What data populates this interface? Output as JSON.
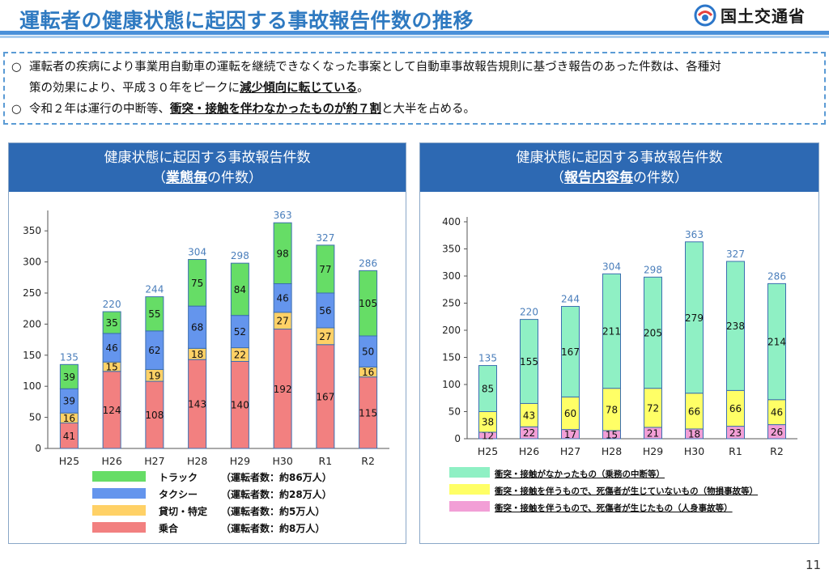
{
  "header": {
    "title": "運転者の健康状態に起因する事故報告件数の推移",
    "ministry": "国土交通省"
  },
  "summary": {
    "bullet": "○",
    "line1_a": "運転者の疾病により事業用自動車の運転を継続できなくなった事案として自動車事故報告規則に基づき報告のあった件数は、各種対",
    "line1_b": "策の効果により、平成３０年をピークに",
    "line1_emph": "減少傾向に転じている",
    "line1_end": "。",
    "line2_a": "令和２年は運行の中断等、",
    "line2_emph": "衝突・接触を伴わなかったものが約７割",
    "line2_end": "と大半を占める。"
  },
  "left_panel": {
    "title": "健康状態に起因する事故報告件数",
    "sub_open": "（",
    "sub_emph": "業態毎",
    "sub_close": "の件数）"
  },
  "right_panel": {
    "title": "健康状態に起因する事故報告件数",
    "sub_open": "（",
    "sub_emph": "報告内容毎",
    "sub_close": "の件数）"
  },
  "page_number": "11",
  "chart_data": [
    {
      "type": "bar",
      "stacked": true,
      "categories": [
        "H25",
        "H26",
        "H27",
        "H28",
        "H29",
        "H30",
        "R1",
        "R2"
      ],
      "ylim": [
        0,
        375
      ],
      "yticks": [
        0,
        50,
        100,
        150,
        200,
        250,
        300,
        350
      ],
      "grid": false,
      "legend_position": "bottom",
      "totals": [
        135,
        220,
        244,
        304,
        298,
        363,
        327,
        286
      ],
      "totals_color": "#4a7ebb",
      "series": [
        {
          "name": "乗合",
          "note": "（運転者数：約8万人）",
          "color": "#f28080",
          "values": [
            41,
            124,
            108,
            143,
            140,
            192,
            167,
            115
          ]
        },
        {
          "name": "貸切・特定",
          "note": "（運転者数：約5万人）",
          "color": "#ffd166",
          "values": [
            16,
            15,
            19,
            18,
            22,
            27,
            27,
            16
          ]
        },
        {
          "name": "タクシー",
          "note": "（運転者数：約28万人）",
          "color": "#6495ed",
          "values": [
            39,
            46,
            62,
            68,
            52,
            46,
            56,
            50
          ]
        },
        {
          "name": "トラック",
          "note": "（運転者数：約86万人）",
          "color": "#66dd66",
          "values": [
            39,
            35,
            55,
            75,
            84,
            98,
            77,
            105
          ]
        }
      ]
    },
    {
      "type": "bar",
      "stacked": true,
      "categories": [
        "H25",
        "H26",
        "H27",
        "H28",
        "H29",
        "H30",
        "R1",
        "R2"
      ],
      "ylim": [
        0,
        400
      ],
      "yticks": [
        0,
        50,
        100,
        150,
        200,
        250,
        300,
        350,
        400
      ],
      "grid": false,
      "legend_position": "bottom",
      "totals": [
        135,
        220,
        244,
        304,
        298,
        363,
        327,
        286
      ],
      "totals_color": "#4a7ebb",
      "series": [
        {
          "name": "衝突・接触を伴うもので、死傷者が生じたもの（人身事故等）",
          "color": "#f29fd6",
          "values": [
            12,
            22,
            17,
            15,
            21,
            18,
            23,
            26
          ]
        },
        {
          "name": "衝突・接触を伴うもので、死傷者が生じていないもの（物損事故等）",
          "color": "#ffff66",
          "values": [
            38,
            43,
            60,
            78,
            72,
            66,
            66,
            46
          ]
        },
        {
          "name": "衝突・接触がなかったもの（乗務の中断等）",
          "color": "#8ff0c4",
          "values": [
            85,
            155,
            167,
            211,
            205,
            279,
            238,
            214
          ]
        }
      ]
    }
  ]
}
